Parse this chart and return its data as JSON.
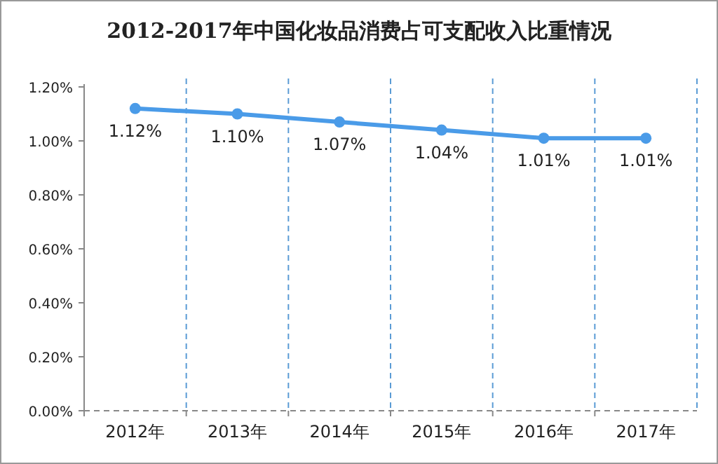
{
  "chart_data": {
    "type": "line",
    "title": "2012-2017年中国化妆品消费占可支配收入比重情况",
    "categories": [
      "2012年",
      "2013年",
      "2014年",
      "2015年",
      "2016年",
      "2017年"
    ],
    "series": [
      {
        "color": "#4a9be8",
        "values": [
          1.12,
          1.1,
          1.07,
          1.04,
          1.01,
          1.01
        ],
        "value_labels": [
          "1.12%",
          "1.10%",
          "1.07%",
          "1.04%",
          "1.01%",
          "1.01%"
        ]
      }
    ],
    "ylim": [
      0,
      1.2
    ],
    "yticks": [
      {
        "value": 0,
        "label": "0.00%"
      },
      {
        "value": 0.2,
        "label": "0.20%"
      },
      {
        "value": 0.4,
        "label": "0.40%"
      },
      {
        "value": 0.6,
        "label": "0.60%"
      },
      {
        "value": 0.8,
        "label": "0.80%"
      },
      {
        "value": 1.0,
        "label": "1.00%"
      },
      {
        "value": 1.2,
        "label": "1.20%"
      }
    ],
    "grid": "x",
    "marker": "circle",
    "line_style": "solid"
  }
}
